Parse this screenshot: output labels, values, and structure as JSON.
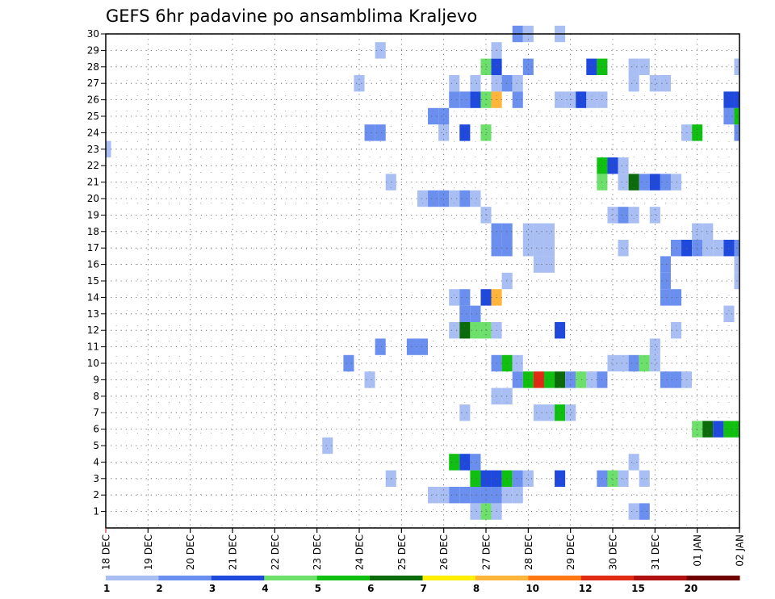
{
  "chart_data": {
    "type": "heatmap",
    "title": "GEFS 6hr padavine po ansamblima Kraljevo",
    "xlabel": "",
    "ylabel": "",
    "x_tick_labels": [
      "18 DEC",
      "19 DEC",
      "20 DEC",
      "21 DEC",
      "22 DEC",
      "23 DEC",
      "24 DEC",
      "25 DEC",
      "26 DEC",
      "27 DEC",
      "28 DEC",
      "29 DEC",
      "30 DEC",
      "31 DEC",
      "01 JAN",
      "02 JAN"
    ],
    "x_range_steps": [
      0,
      60
    ],
    "y_tick_labels": [
      "1",
      "2",
      "3",
      "4",
      "5",
      "6",
      "7",
      "8",
      "9",
      "10",
      "11",
      "12",
      "13",
      "14",
      "15",
      "16",
      "17",
      "18",
      "19",
      "20",
      "21",
      "22",
      "23",
      "24",
      "25",
      "26",
      "27",
      "28",
      "29",
      "30"
    ],
    "y_range": [
      0,
      30
    ],
    "grid": true,
    "legend_placement": "bottom",
    "legend": {
      "labels": [
        "1",
        "2",
        "3",
        "4",
        "5",
        "6",
        "7",
        "8",
        "10",
        "12",
        "15",
        "20"
      ],
      "colors": [
        "#a9bef2",
        "#6b8fee",
        "#1f48dd",
        "#6de06b",
        "#10c010",
        "#0b6b0b",
        "#ffee00",
        "#ffb43a",
        "#ff7a14",
        "#e02a14",
        "#b01010",
        "#700000"
      ]
    },
    "cells_format": "[member, step_6h, class_index]",
    "cells": [
      [
        1,
        35,
        0
      ],
      [
        1,
        36,
        3
      ],
      [
        1,
        37,
        0
      ],
      [
        1,
        50,
        0
      ],
      [
        1,
        51,
        1
      ],
      [
        2,
        31,
        0
      ],
      [
        2,
        32,
        0
      ],
      [
        2,
        33,
        1
      ],
      [
        2,
        34,
        1
      ],
      [
        2,
        35,
        1
      ],
      [
        2,
        36,
        1
      ],
      [
        2,
        37,
        1
      ],
      [
        2,
        38,
        0
      ],
      [
        2,
        39,
        0
      ],
      [
        3,
        27,
        0
      ],
      [
        3,
        35,
        4
      ],
      [
        3,
        36,
        2
      ],
      [
        3,
        37,
        2
      ],
      [
        3,
        38,
        4
      ],
      [
        3,
        39,
        1
      ],
      [
        3,
        40,
        0
      ],
      [
        3,
        43,
        2
      ],
      [
        3,
        47,
        1
      ],
      [
        3,
        48,
        3
      ],
      [
        3,
        49,
        0
      ],
      [
        3,
        51,
        0
      ],
      [
        4,
        33,
        4
      ],
      [
        4,
        34,
        2
      ],
      [
        4,
        35,
        1
      ],
      [
        4,
        50,
        0
      ],
      [
        5,
        21,
        0
      ],
      [
        6,
        56,
        3
      ],
      [
        6,
        57,
        5
      ],
      [
        6,
        58,
        2
      ],
      [
        6,
        59,
        4
      ],
      [
        6,
        60,
        4
      ],
      [
        7,
        34,
        0
      ],
      [
        7,
        41,
        0
      ],
      [
        7,
        42,
        0
      ],
      [
        7,
        43,
        4
      ],
      [
        7,
        44,
        0
      ],
      [
        8,
        37,
        0
      ],
      [
        8,
        38,
        0
      ],
      [
        9,
        25,
        0
      ],
      [
        9,
        39,
        1
      ],
      [
        9,
        40,
        4
      ],
      [
        9,
        41,
        9
      ],
      [
        9,
        42,
        4
      ],
      [
        9,
        43,
        5
      ],
      [
        9,
        44,
        1
      ],
      [
        9,
        45,
        3
      ],
      [
        9,
        46,
        0
      ],
      [
        9,
        47,
        1
      ],
      [
        9,
        53,
        1
      ],
      [
        9,
        54,
        1
      ],
      [
        9,
        55,
        0
      ],
      [
        10,
        23,
        1
      ],
      [
        10,
        37,
        1
      ],
      [
        10,
        38,
        4
      ],
      [
        10,
        39,
        0
      ],
      [
        10,
        48,
        0
      ],
      [
        10,
        49,
        0
      ],
      [
        10,
        50,
        1
      ],
      [
        10,
        51,
        3
      ],
      [
        10,
        52,
        0
      ],
      [
        11,
        26,
        1
      ],
      [
        11,
        29,
        1
      ],
      [
        11,
        30,
        1
      ],
      [
        11,
        52,
        0
      ],
      [
        12,
        33,
        0
      ],
      [
        12,
        34,
        5
      ],
      [
        12,
        35,
        3
      ],
      [
        12,
        36,
        3
      ],
      [
        12,
        37,
        0
      ],
      [
        12,
        43,
        2
      ],
      [
        12,
        54,
        0
      ],
      [
        13,
        34,
        1
      ],
      [
        13,
        35,
        1
      ],
      [
        13,
        59,
        0
      ],
      [
        14,
        33,
        0
      ],
      [
        14,
        34,
        1
      ],
      [
        14,
        36,
        2
      ],
      [
        14,
        37,
        7
      ],
      [
        14,
        53,
        1
      ],
      [
        14,
        54,
        1
      ],
      [
        15,
        38,
        0
      ],
      [
        15,
        53,
        1
      ],
      [
        15,
        60,
        0
      ],
      [
        16,
        41,
        0
      ],
      [
        16,
        42,
        0
      ],
      [
        16,
        53,
        1
      ],
      [
        16,
        60,
        0
      ],
      [
        17,
        37,
        1
      ],
      [
        17,
        38,
        1
      ],
      [
        17,
        40,
        0
      ],
      [
        17,
        41,
        0
      ],
      [
        17,
        42,
        0
      ],
      [
        17,
        49,
        0
      ],
      [
        17,
        54,
        1
      ],
      [
        17,
        55,
        2
      ],
      [
        17,
        56,
        1
      ],
      [
        17,
        57,
        0
      ],
      [
        17,
        58,
        0
      ],
      [
        17,
        59,
        2
      ],
      [
        17,
        60,
        1
      ],
      [
        18,
        37,
        1
      ],
      [
        18,
        38,
        1
      ],
      [
        18,
        40,
        0
      ],
      [
        18,
        41,
        0
      ],
      [
        18,
        42,
        0
      ],
      [
        18,
        56,
        0
      ],
      [
        18,
        57,
        0
      ],
      [
        19,
        36,
        0
      ],
      [
        19,
        48,
        0
      ],
      [
        19,
        49,
        1
      ],
      [
        19,
        50,
        0
      ],
      [
        19,
        52,
        0
      ],
      [
        20,
        30,
        0
      ],
      [
        20,
        31,
        1
      ],
      [
        20,
        32,
        1
      ],
      [
        20,
        33,
        0
      ],
      [
        20,
        34,
        1
      ],
      [
        20,
        35,
        0
      ],
      [
        21,
        27,
        0
      ],
      [
        21,
        47,
        3
      ],
      [
        21,
        49,
        0
      ],
      [
        21,
        50,
        5
      ],
      [
        21,
        51,
        1
      ],
      [
        21,
        52,
        2
      ],
      [
        21,
        53,
        1
      ],
      [
        21,
        54,
        0
      ],
      [
        22,
        47,
        4
      ],
      [
        22,
        48,
        2
      ],
      [
        22,
        49,
        0
      ],
      [
        23,
        0,
        0
      ],
      [
        24,
        25,
        1
      ],
      [
        24,
        26,
        1
      ],
      [
        24,
        32,
        0
      ],
      [
        24,
        34,
        2
      ],
      [
        24,
        36,
        3
      ],
      [
        24,
        55,
        0
      ],
      [
        24,
        56,
        4
      ],
      [
        24,
        60,
        1
      ],
      [
        25,
        31,
        1
      ],
      [
        25,
        32,
        1
      ],
      [
        25,
        59,
        1
      ],
      [
        25,
        60,
        4
      ],
      [
        26,
        33,
        1
      ],
      [
        26,
        34,
        1
      ],
      [
        26,
        35,
        2
      ],
      [
        26,
        36,
        3
      ],
      [
        26,
        37,
        7
      ],
      [
        26,
        39,
        1
      ],
      [
        26,
        43,
        0
      ],
      [
        26,
        44,
        0
      ],
      [
        26,
        45,
        2
      ],
      [
        26,
        46,
        0
      ],
      [
        26,
        47,
        0
      ],
      [
        26,
        59,
        2
      ],
      [
        26,
        60,
        2
      ],
      [
        27,
        24,
        0
      ],
      [
        27,
        33,
        0
      ],
      [
        27,
        35,
        0
      ],
      [
        27,
        37,
        0
      ],
      [
        27,
        38,
        1
      ],
      [
        27,
        39,
        0
      ],
      [
        27,
        50,
        0
      ],
      [
        27,
        52,
        0
      ],
      [
        27,
        53,
        0
      ],
      [
        28,
        36,
        3
      ],
      [
        28,
        37,
        2
      ],
      [
        28,
        40,
        1
      ],
      [
        28,
        46,
        2
      ],
      [
        28,
        47,
        4
      ],
      [
        28,
        50,
        0
      ],
      [
        28,
        51,
        0
      ],
      [
        28,
        60,
        0
      ],
      [
        29,
        26,
        0
      ],
      [
        29,
        37,
        0
      ],
      [
        30,
        39,
        1
      ],
      [
        30,
        40,
        0
      ],
      [
        30,
        43,
        0
      ]
    ]
  }
}
